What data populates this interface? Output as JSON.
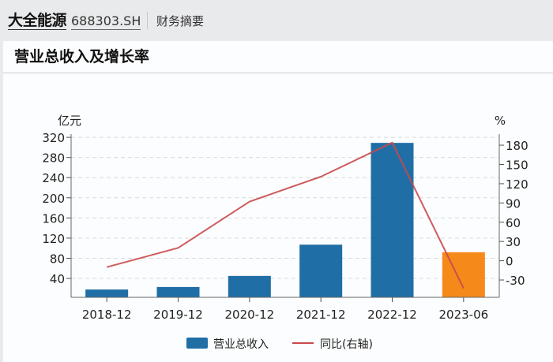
{
  "header": {
    "company": "大全能源",
    "code": "688303.SH",
    "section": "财务摘要"
  },
  "card": {
    "title": "营业总收入及增长率"
  },
  "colors": {
    "bar": "#1f6fa6",
    "bar_highlight": "#f5891a",
    "line": "#c9494b"
  },
  "chart_data": {
    "type": "bar",
    "title": "营业总收入及增长率",
    "categories": [
      "2018-12",
      "2019-12",
      "2020-12",
      "2021-12",
      "2022-12",
      "2023-06"
    ],
    "series": [
      {
        "name": "营业总收入",
        "type": "bar",
        "axis": "left",
        "values": [
          18,
          23,
          45,
          107,
          309,
          92
        ]
      },
      {
        "name": "同比(右轴)",
        "type": "line",
        "axis": "right",
        "values": [
          -10,
          20,
          92,
          131,
          184,
          -43
        ]
      }
    ],
    "highlight_index": 5,
    "ylabel_left": "亿元",
    "ylabel_right": "%",
    "yticks_left": [
      40,
      80,
      120,
      160,
      200,
      240,
      280,
      320
    ],
    "yticks_right": [
      -30,
      0,
      30,
      60,
      90,
      120,
      150,
      180
    ],
    "ylim_left": [
      0,
      330
    ],
    "ylim_right": [
      -60,
      190
    ],
    "grid": true,
    "legend_position": "bottom",
    "legend": [
      "营业总收入",
      "同比(右轴)"
    ]
  }
}
